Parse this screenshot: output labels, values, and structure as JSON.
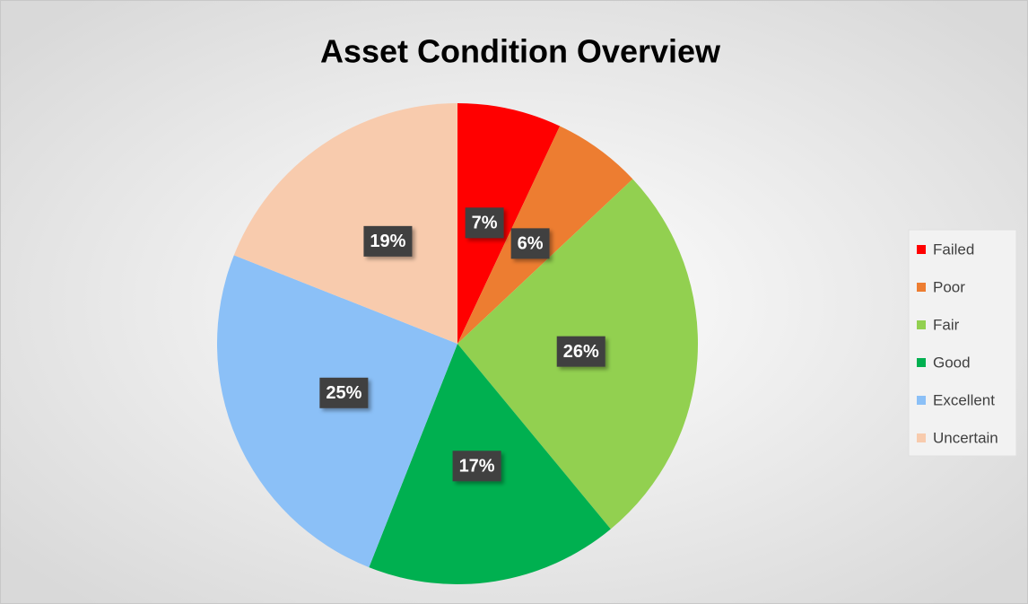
{
  "chart_data": {
    "type": "pie",
    "title": "Asset Condition Overview",
    "categories": [
      "Failed",
      "Poor",
      "Fair",
      "Good",
      "Excellent",
      "Uncertain"
    ],
    "values": [
      7,
      6,
      26,
      17,
      25,
      19
    ],
    "value_labels": [
      "7%",
      "6%",
      "26%",
      "17%",
      "25%",
      "19%"
    ],
    "colors": [
      "#ff0000",
      "#ed7d31",
      "#92d050",
      "#00b050",
      "#8bc0f7",
      "#f8cbad"
    ],
    "legend": "right"
  }
}
